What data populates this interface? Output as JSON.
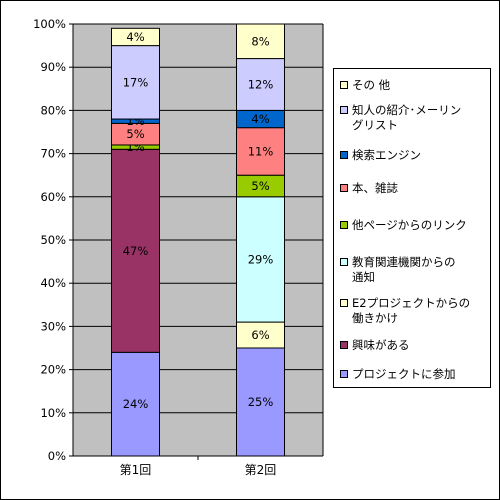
{
  "chart_data": {
    "type": "bar",
    "stacked": true,
    "percent": true,
    "categories": [
      "第1回",
      "第2回"
    ],
    "series": [
      {
        "name": "プロジェクトに参加",
        "color": "#9999ff",
        "values": [
          24,
          25
        ],
        "labels": [
          "24%",
          "25%"
        ]
      },
      {
        "name": "興味がある",
        "color": "#993366",
        "values": [
          47,
          0
        ],
        "labels": [
          "47%",
          ""
        ]
      },
      {
        "name": "E2プロジェクトからの\n働きかけ",
        "color": "#ffffcc",
        "values": [
          0,
          6
        ],
        "labels": [
          "",
          "6%"
        ]
      },
      {
        "name": "教育関連機関からの\n通知",
        "color": "#ccffff",
        "values": [
          0,
          29
        ],
        "labels": [
          "",
          "29%"
        ]
      },
      {
        "name": "他ページからのリンク",
        "color": "#99cc00",
        "values": [
          1,
          5
        ],
        "labels": [
          "1%",
          "5%"
        ]
      },
      {
        "name": "本、雑誌",
        "color": "#ff8080",
        "values": [
          5,
          11
        ],
        "labels": [
          "5%",
          "11%"
        ]
      },
      {
        "name": "検索エンジン",
        "color": "#0066cc",
        "values": [
          1,
          4
        ],
        "labels": [
          "1%",
          "4%"
        ]
      },
      {
        "name": "知人の紹介･メーリン\nグリスト",
        "color": "#ccccff",
        "values": [
          17,
          12
        ],
        "labels": [
          "17%",
          "12%"
        ]
      },
      {
        "name": "その 他",
        "color": "#ffffcc",
        "values": [
          4,
          8
        ],
        "labels": [
          "4%",
          "8%"
        ]
      }
    ],
    "ylim": [
      0,
      100
    ],
    "yticks": [
      "0%",
      "10%",
      "20%",
      "30%",
      "40%",
      "50%",
      "60%",
      "70%",
      "80%",
      "90%",
      "100%"
    ],
    "plot_background": "#c0c0c0",
    "grid": true,
    "legend_position": "right"
  }
}
